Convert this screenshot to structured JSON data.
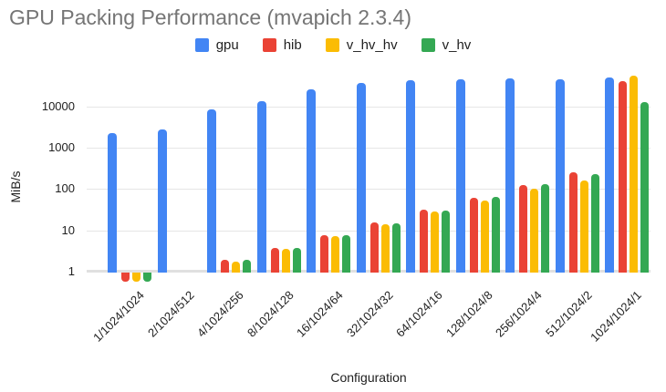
{
  "title": "GPU Packing Performance (mvapich 2.3.4)",
  "colors": {
    "title_text": "#757575",
    "axis_text": "#212121",
    "gridline": "#e6e6e6",
    "baseline": "#e0e0e0"
  },
  "chart_data": {
    "type": "bar",
    "title": "GPU Packing Performance (mvapich 2.3.4)",
    "xlabel": "Configuration",
    "ylabel": "MiB/s",
    "y_scale": "log",
    "y_ticks": [
      1,
      10,
      100,
      1000,
      10000
    ],
    "ylim": [
      0.55,
      60000
    ],
    "grid": true,
    "legend_position": "top",
    "bar_baseline": 1,
    "categories": [
      "1/1024/1024",
      "2/1024/512",
      "4/1024/256",
      "8/1024/128",
      "16/1024/64",
      "32/1024/32",
      "64/1024/16",
      "128/1024/8",
      "256/1024/4",
      "512/1024/2",
      "1024/1024/1"
    ],
    "series": [
      {
        "name": "gpu",
        "color": "#4285F4",
        "values": [
          2250,
          2750,
          8500,
          13500,
          26000,
          38000,
          43500,
          46000,
          48000,
          45000,
          50000
        ]
      },
      {
        "name": "hib",
        "color": "#EA4335",
        "values": [
          0.6,
          null,
          1.9,
          3.7,
          7.6,
          15.5,
          31,
          62,
          125,
          250,
          41500
        ]
      },
      {
        "name": "v_hv_hv",
        "color": "#FBBC04",
        "values": [
          0.6,
          null,
          1.75,
          3.6,
          7.4,
          14,
          28,
          53,
          104,
          165,
          55000
        ]
      },
      {
        "name": "v_hv",
        "color": "#34A853",
        "values": [
          0.6,
          null,
          1.9,
          3.8,
          7.6,
          15,
          30,
          66,
          130,
          228,
          12800
        ]
      }
    ]
  }
}
